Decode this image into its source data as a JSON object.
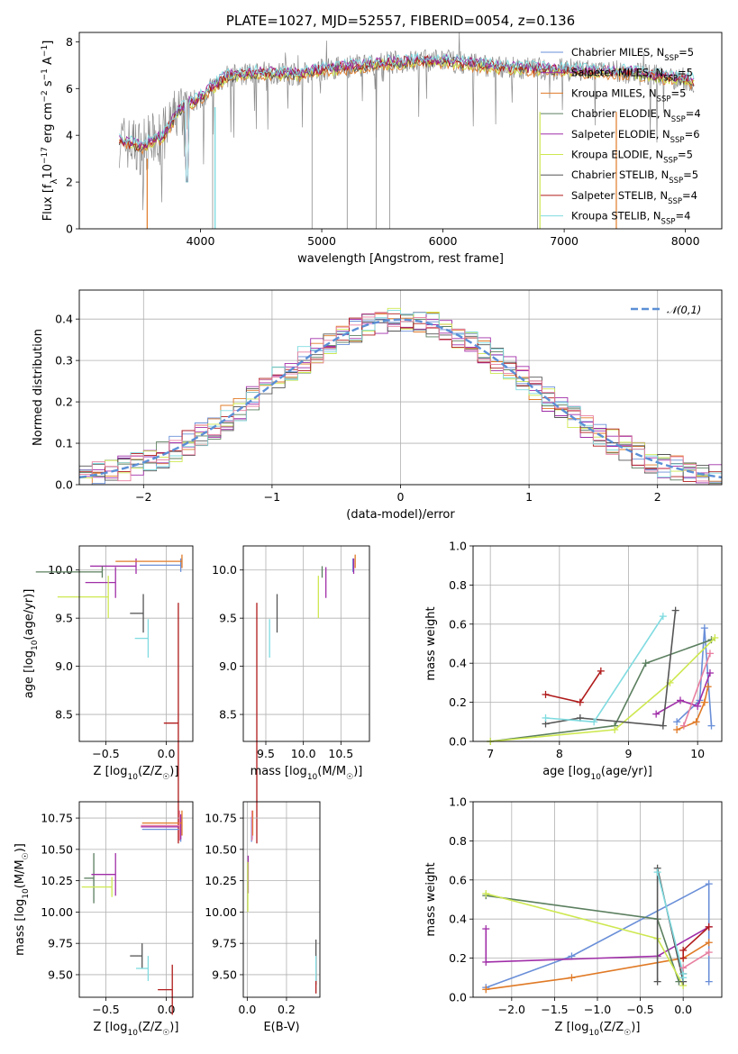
{
  "colors": {
    "chabrier_miles": "#6a8fd8",
    "salpeter_miles": "#a02ea8",
    "kroupa_miles": "#e07a26",
    "chabrier_elodie": "#5b7f5f",
    "salpeter_elodie": "#a02ea8",
    "kroupa_elodie": "#cde850",
    "chabrier_stelib": "#555555",
    "salpeter_stelib": "#b01b1b",
    "kroupa_stelib": "#7fdbe0",
    "normal": "#5b8fd6",
    "pink": "#e87fa0",
    "grey": "#8c8c8c"
  },
  "chart_data": [
    {
      "type": "line",
      "title": "PLATE=1027, MJD=52557, FIBERID=0054, z=0.136",
      "xlabel": "wavelength [Angstrom, rest frame]",
      "ylabel": "Flux [f_λ10^{-17} erg cm^{-2} s^{-1} A^{-1}]",
      "xlim": [
        3000,
        8300
      ],
      "ylim": [
        0,
        8.4
      ],
      "xticks": [
        4000,
        5000,
        6000,
        7000,
        8000
      ],
      "yticks": [
        0,
        2,
        4,
        6,
        8
      ],
      "legend": "right",
      "legend_entries": [
        {
          "text": "Chabrier MILES, N",
          "sub": "SSP",
          "suffix": "=5"
        },
        {
          "text": "Salpeter MILES, N",
          "sub": "SSP",
          "suffix": "=5"
        },
        {
          "text": "Kroupa MILES, N",
          "sub": "SSP",
          "suffix": "=5"
        },
        {
          "text": "Chabrier ELODIE, N",
          "sub": "SSP",
          "suffix": "=4"
        },
        {
          "text": "Salpeter ELODIE, N",
          "sub": "SSP",
          "suffix": "=6"
        },
        {
          "text": "Kroupa ELODIE, N",
          "sub": "SSP",
          "suffix": "=5"
        },
        {
          "text": "Chabrier STELIB, N",
          "sub": "SSP",
          "suffix": "=5"
        },
        {
          "text": "Salpeter STELIB, N",
          "sub": "SSP",
          "suffix": "=4"
        },
        {
          "text": "Kroupa STELIB, N",
          "sub": "SSP",
          "suffix": "=4"
        }
      ],
      "continuum": [
        [
          3330,
          3.8
        ],
        [
          3500,
          3.5
        ],
        [
          3700,
          4.0
        ],
        [
          3800,
          4.9
        ],
        [
          3900,
          5.4
        ],
        [
          4000,
          5.6
        ],
        [
          4200,
          6.5
        ],
        [
          4500,
          6.7
        ],
        [
          4800,
          6.6
        ],
        [
          5000,
          6.8
        ],
        [
          5500,
          7.1
        ],
        [
          6000,
          7.2
        ],
        [
          6500,
          6.9
        ],
        [
          7000,
          6.8
        ],
        [
          7500,
          6.7
        ],
        [
          8000,
          6.4
        ],
        [
          8070,
          6.3
        ]
      ]
    },
    {
      "type": "step",
      "xlabel": "(data-model)/error",
      "ylabel": "Normed distribution",
      "xlim": [
        -2.5,
        2.5
      ],
      "ylim": [
        0,
        0.47
      ],
      "xticks": [
        -2,
        -1,
        0,
        1,
        2
      ],
      "yticks": [
        0.0,
        0.1,
        0.2,
        0.3,
        0.4
      ],
      "legend": "top-right",
      "legend_label": "𝒩(0,1)",
      "series_name": "N(0,1)"
    },
    {
      "type": "scatter",
      "xlabel": "Z [log10(Z/Z☉)]",
      "ylabel": "age  [log10(age/yr)]",
      "xlim": [
        -0.72,
        0.22
      ],
      "ylim": [
        8.22,
        10.25
      ],
      "xticks": [
        -0.5,
        0.0
      ],
      "yticks": [
        8.5,
        9.0,
        9.5,
        10.0
      ],
      "points": [
        {
          "series": "chabrier_miles",
          "x": 0.12,
          "y": 10.05,
          "xerr": 0.34,
          "yerr": 0.07
        },
        {
          "series": "salpeter_miles",
          "x": -0.25,
          "y": 10.04,
          "xerr": 0.38,
          "yerr": 0.08
        },
        {
          "series": "kroupa_miles",
          "x": 0.13,
          "y": 10.09,
          "xerr": 0.55,
          "yerr": 0.07
        },
        {
          "series": "chabrier_elodie",
          "x": -0.53,
          "y": 9.98,
          "xerr": 0.55,
          "yerr": 0.06
        },
        {
          "series": "salpeter_elodie",
          "x": -0.42,
          "y": 9.87,
          "xerr": 0.25,
          "yerr": 0.16
        },
        {
          "series": "kroupa_elodie",
          "x": -0.48,
          "y": 9.72,
          "xerr": 0.42,
          "yerr": 0.22
        },
        {
          "series": "chabrier_stelib",
          "x": -0.19,
          "y": 9.55,
          "xerr": 0.11,
          "yerr": 0.2
        },
        {
          "series": "salpeter_stelib",
          "x": 0.1,
          "y": 8.41,
          "xerr": 0.12,
          "yerr": 1.25
        },
        {
          "series": "kroupa_stelib",
          "x": -0.15,
          "y": 9.29,
          "xerr": 0.11,
          "yerr": 0.2
        }
      ]
    },
    {
      "type": "scatter",
      "xlabel": "mass [log10(M/M☉)]",
      "xlim": [
        9.2,
        10.88
      ],
      "ylim": [
        8.22,
        10.25
      ],
      "xticks": [
        9.5,
        10.0,
        10.5
      ],
      "yticks": [
        8.5,
        9.0,
        9.5,
        10.0
      ],
      "points": [
        {
          "series": "chabrier_miles",
          "x": 10.66,
          "y": 10.05,
          "yerr": 0.07
        },
        {
          "series": "salpeter_miles",
          "x": 10.67,
          "y": 10.04,
          "yerr": 0.08
        },
        {
          "series": "kroupa_miles",
          "x": 10.69,
          "y": 10.09,
          "yerr": 0.07
        },
        {
          "series": "chabrier_elodie",
          "x": 10.25,
          "y": 9.98,
          "yerr": 0.06
        },
        {
          "series": "salpeter_elodie",
          "x": 10.3,
          "y": 9.87,
          "yerr": 0.16
        },
        {
          "series": "kroupa_elodie",
          "x": 10.2,
          "y": 9.72,
          "yerr": 0.22
        },
        {
          "series": "chabrier_stelib",
          "x": 9.65,
          "y": 9.55,
          "yerr": 0.2
        },
        {
          "series": "salpeter_stelib",
          "x": 9.38,
          "y": 8.41,
          "yerr": 1.25
        },
        {
          "series": "kroupa_stelib",
          "x": 9.55,
          "y": 9.29,
          "yerr": 0.2
        }
      ]
    },
    {
      "type": "line",
      "xlabel": "age  [log10(age/yr)]",
      "ylabel": "mass weight",
      "xlim": [
        6.75,
        10.35
      ],
      "ylim": [
        0,
        1.0
      ],
      "xticks": [
        7,
        8,
        9,
        10
      ],
      "yticks": [
        0.0,
        0.2,
        0.4,
        0.6,
        0.8,
        1.0
      ],
      "series": [
        {
          "series": "chabrier_miles",
          "x": [
            9.7,
            10.03,
            10.1,
            10.2
          ],
          "y": [
            0.1,
            0.21,
            0.58,
            0.08
          ]
        },
        {
          "series": "salpeter_miles",
          "x": [
            9.4,
            9.75,
            10.0,
            10.18
          ],
          "y": [
            0.14,
            0.21,
            0.18,
            0.35
          ]
        },
        {
          "series": "kroupa_miles",
          "x": [
            9.7,
            9.98,
            10.1,
            10.15
          ],
          "y": [
            0.06,
            0.1,
            0.2,
            0.28
          ]
        },
        {
          "series": "chabrier_elodie",
          "x": [
            7.0,
            8.8,
            9.25,
            10.2
          ],
          "y": [
            0.0,
            0.08,
            0.4,
            0.52
          ]
        },
        {
          "series": "kroupa_elodie",
          "x": [
            7.0,
            8.8,
            9.6,
            10.25
          ],
          "y": [
            0.0,
            0.06,
            0.3,
            0.53
          ]
        },
        {
          "series": "chabrier_stelib",
          "x": [
            7.8,
            8.3,
            9.5,
            9.68
          ],
          "y": [
            0.09,
            0.12,
            0.08,
            0.67
          ]
        },
        {
          "series": "salpeter_stelib",
          "x": [
            7.8,
            8.3,
            8.6
          ],
          "y": [
            0.24,
            0.2,
            0.36
          ]
        },
        {
          "series": "kroupa_stelib",
          "x": [
            7.8,
            8.5,
            9.5
          ],
          "y": [
            0.12,
            0.1,
            0.64
          ]
        },
        {
          "series": "pink",
          "x": [
            9.8,
            10.18
          ],
          "y": [
            0.08,
            0.45
          ]
        }
      ]
    },
    {
      "type": "scatter",
      "xlabel": "Z [log10(Z/Z☉)]",
      "ylabel": "mass [log10(M/M☉)]",
      "xlim": [
        -0.72,
        0.22
      ],
      "ylim": [
        9.32,
        10.88
      ],
      "xticks": [
        -0.5,
        0.0
      ],
      "yticks": [
        9.5,
        9.75,
        10.0,
        10.25,
        10.5,
        10.75
      ],
      "points": [
        {
          "series": "chabrier_miles",
          "x": 0.12,
          "y": 10.66,
          "xerr": 0.32,
          "yerr": 0.1
        },
        {
          "series": "salpeter_miles",
          "x": 0.12,
          "y": 10.68,
          "xerr": 0.33,
          "yerr": 0.1
        },
        {
          "series": "kroupa_miles",
          "x": 0.13,
          "y": 10.71,
          "xerr": 0.33,
          "yerr": 0.1
        },
        {
          "series": "pink",
          "x": 0.11,
          "y": 10.69,
          "xerr": 0.32,
          "yerr": 0.12
        },
        {
          "series": "chabrier_elodie",
          "x": -0.6,
          "y": 10.27,
          "xerr": 0.08,
          "yerr": 0.2
        },
        {
          "series": "salpeter_elodie",
          "x": -0.42,
          "y": 10.3,
          "xerr": 0.2,
          "yerr": 0.17
        },
        {
          "series": "kroupa_elodie",
          "x": -0.45,
          "y": 10.2,
          "xerr": 0.25,
          "yerr": 0.08
        },
        {
          "series": "chabrier_stelib",
          "x": -0.2,
          "y": 9.65,
          "xerr": 0.1,
          "yerr": 0.1
        },
        {
          "series": "salpeter_stelib",
          "x": 0.05,
          "y": 9.38,
          "xerr": 0.12,
          "yerr": 0.2
        },
        {
          "series": "kroupa_stelib",
          "x": -0.15,
          "y": 9.55,
          "xerr": 0.1,
          "yerr": 0.1
        }
      ]
    },
    {
      "type": "scatter",
      "xlabel": "E(B-V)",
      "xlim": [
        -0.02,
        0.37
      ],
      "ylim": [
        9.32,
        10.88
      ],
      "xticks": [
        0.0,
        0.2
      ],
      "yticks": [
        9.5,
        9.75,
        10.0,
        10.25,
        10.5,
        10.75
      ],
      "points": [
        {
          "series": "chabrier_miles",
          "x": 0.022,
          "y": 10.66,
          "yerr": 0.1
        },
        {
          "series": "salpeter_miles",
          "x": 0.025,
          "y": 10.68,
          "yerr": 0.1
        },
        {
          "series": "kroupa_miles",
          "x": 0.028,
          "y": 10.71,
          "yerr": 0.1
        },
        {
          "series": "pink",
          "x": 0.024,
          "y": 10.69,
          "yerr": 0.12
        },
        {
          "series": "salpeter_elodie",
          "x": 0.005,
          "y": 10.3,
          "yerr": 0.15
        },
        {
          "series": "kroupa_elodie",
          "x": 0.003,
          "y": 10.2,
          "yerr": 0.2
        },
        {
          "series": "chabrier_stelib",
          "x": 0.35,
          "y": 9.6,
          "yerr": 0.18
        },
        {
          "series": "salpeter_stelib",
          "x": 0.35,
          "y": 9.5,
          "yerr": 0.15
        },
        {
          "series": "kroupa_stelib",
          "x": 0.35,
          "y": 9.55,
          "yerr": 0.1
        }
      ]
    },
    {
      "type": "line",
      "xlabel": "Z [log10(Z/Z☉)]",
      "ylabel": "mass weight",
      "xlim": [
        -2.45,
        0.45
      ],
      "ylim": [
        0,
        1.0
      ],
      "xticks": [
        -2.0,
        -1.5,
        -1.0,
        -0.5,
        0.0
      ],
      "yticks": [
        0.0,
        0.2,
        0.4,
        0.6,
        0.8,
        1.0
      ],
      "series": [
        {
          "series": "chabrier_miles",
          "x": [
            -2.3,
            -1.3,
            0.3,
            0.3
          ],
          "y": [
            0.05,
            0.21,
            0.58,
            0.08
          ]
        },
        {
          "series": "salpeter_miles",
          "x": [
            -2.3,
            -2.3,
            -0.3,
            0.3
          ],
          "y": [
            0.35,
            0.18,
            0.21,
            0.36
          ]
        },
        {
          "series": "kroupa_miles",
          "x": [
            -2.3,
            -1.3,
            0.0,
            0.3
          ],
          "y": [
            0.04,
            0.1,
            0.2,
            0.28
          ]
        },
        {
          "series": "chabrier_elodie",
          "x": [
            -2.3,
            -0.3,
            -0.05
          ],
          "y": [
            0.52,
            0.4,
            0.08
          ]
        },
        {
          "series": "kroupa_elodie",
          "x": [
            -2.3,
            -0.3,
            0.0
          ],
          "y": [
            0.53,
            0.3,
            0.06
          ]
        },
        {
          "series": "chabrier_stelib",
          "x": [
            -0.3,
            -0.3,
            0.0,
            0.0
          ],
          "y": [
            0.08,
            0.66,
            0.08,
            0.12
          ]
        },
        {
          "series": "salpeter_stelib",
          "x": [
            0.0,
            0.0,
            0.3
          ],
          "y": [
            0.2,
            0.24,
            0.36
          ]
        },
        {
          "series": "kroupa_stelib",
          "x": [
            -0.3,
            0.0,
            0.0
          ],
          "y": [
            0.64,
            0.12,
            0.1
          ]
        },
        {
          "series": "pink",
          "x": [
            0.0,
            0.3
          ],
          "y": [
            0.15,
            0.23
          ]
        }
      ]
    }
  ]
}
